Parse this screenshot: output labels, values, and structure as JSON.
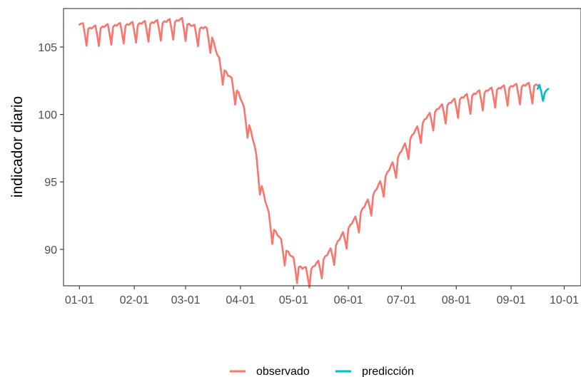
{
  "chart_data": {
    "type": "line",
    "title": "",
    "xlabel": "",
    "ylabel": "indicador diario",
    "x_tick_labels": [
      "01-01",
      "02-01",
      "03-01",
      "04-01",
      "05-01",
      "06-01",
      "07-01",
      "08-01",
      "09-01",
      "10-01"
    ],
    "x_tick_positions_day": [
      0,
      31,
      60,
      91,
      121,
      152,
      182,
      213,
      244,
      274
    ],
    "y_ticks": [
      90,
      95,
      100,
      105
    ],
    "xlim_day": [
      -9,
      283.5
    ],
    "ylim": [
      87.3,
      107.85
    ],
    "grid": false,
    "legend_position": "bottom",
    "series": [
      {
        "name": "observado",
        "color": "#F8766D",
        "anchors": [
          [
            0,
            106.6
          ],
          [
            6,
            106.3
          ],
          [
            13,
            106.4
          ],
          [
            20,
            106.5
          ],
          [
            30,
            106.6
          ],
          [
            40,
            106.7
          ],
          [
            50,
            106.8
          ],
          [
            58,
            106.9
          ],
          [
            62,
            106.6
          ],
          [
            64,
            106.4
          ],
          [
            71,
            106.3
          ],
          [
            75,
            105.7
          ],
          [
            78,
            104.2
          ],
          [
            81,
            103.5
          ],
          [
            84,
            102.8
          ],
          [
            87,
            102.3
          ],
          [
            90,
            101.5
          ],
          [
            93,
            100.3
          ],
          [
            96,
            99.2
          ],
          [
            99,
            97.5
          ],
          [
            101,
            96.0
          ],
          [
            103,
            94.7
          ],
          [
            105,
            93.5
          ],
          [
            107,
            92.5
          ],
          [
            109,
            91.7
          ],
          [
            111,
            91.2
          ],
          [
            114,
            90.5
          ],
          [
            117,
            89.9
          ],
          [
            120,
            89.3
          ],
          [
            123,
            88.8
          ],
          [
            126,
            88.5
          ],
          [
            129,
            88.4
          ],
          [
            132,
            88.6
          ],
          [
            135,
            88.9
          ],
          [
            140,
            89.5
          ],
          [
            145,
            90.3
          ],
          [
            150,
            91.2
          ],
          [
            155,
            92.0
          ],
          [
            160,
            92.9
          ],
          [
            165,
            93.8
          ],
          [
            170,
            94.8
          ],
          [
            175,
            95.8
          ],
          [
            180,
            96.8
          ],
          [
            185,
            97.8
          ],
          [
            190,
            98.7
          ],
          [
            195,
            99.5
          ],
          [
            200,
            100.1
          ],
          [
            205,
            100.5
          ],
          [
            210,
            100.8
          ],
          [
            215,
            101.1
          ],
          [
            220,
            101.3
          ],
          [
            225,
            101.5
          ],
          [
            230,
            101.65
          ],
          [
            235,
            101.8
          ],
          [
            240,
            101.9
          ],
          [
            245,
            102.0
          ],
          [
            250,
            102.05
          ],
          [
            255,
            102.1
          ],
          [
            259,
            102.1
          ]
        ],
        "weekly_dip": 1.3,
        "points": []
      },
      {
        "name": "predicción",
        "color": "#00BFC4",
        "points": [
          [
            259,
            101.9
          ],
          [
            260,
            102.2
          ],
          [
            261,
            101.7
          ],
          [
            262,
            101.0
          ],
          [
            263,
            101.6
          ],
          [
            264,
            101.8
          ],
          [
            265,
            101.9
          ]
        ]
      }
    ]
  }
}
